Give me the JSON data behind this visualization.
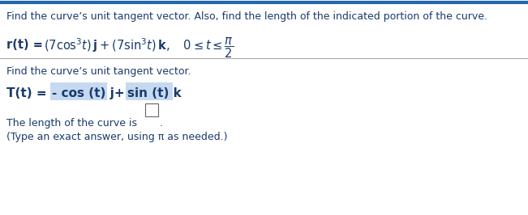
{
  "bg_color": "#ffffff",
  "top_border_color": "#2166AE",
  "divider_color": "#aaaaaa",
  "title_text": "Find the curve’s unit tangent vector. Also, find the length of the indicated portion of the curve.",
  "title_color": "#1a3a6b",
  "title_fontsize": 9.0,
  "curve_color": "#1a3a6b",
  "find_text": "Find the curve’s unit tangent vector.",
  "find_color": "#1a3a6b",
  "find_fontsize": 9.0,
  "Tt_color": "#1a3a6b",
  "length_text1": "The length of the curve is",
  "length_color": "#1a3a6b",
  "type_text": "(Type an exact answer, using π as needed.)",
  "type_color": "#1a3a6b",
  "highlight_color": "#c5d9f1",
  "answer_box_color": "#ffffff",
  "answer_box_border": "#666666",
  "red_color": "#C00000",
  "green_color": "#375623"
}
